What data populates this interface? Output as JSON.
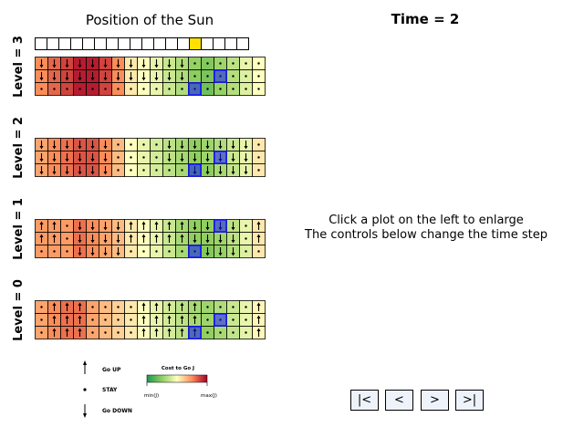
{
  "sun_panel": {
    "title": "Position of the Sun",
    "cells": 18,
    "active_index": 13,
    "active_color": "#ffe000"
  },
  "time_title": "Time = 2",
  "levels": [
    {
      "label": "Level = 3",
      "highlights": [
        {
          "row": 2,
          "col": 12
        },
        {
          "row": 1,
          "col": 14
        }
      ],
      "rows": [
        {
          "costs": [
            0.75,
            0.82,
            0.88,
            0.95,
            0.95,
            0.88,
            0.75,
            0.55,
            0.5,
            0.45,
            0.38,
            0.32,
            0.26,
            0.22,
            0.28,
            0.35,
            0.45,
            0.5
          ],
          "arrows": [
            "D",
            "D",
            "D",
            "D",
            "D",
            "D",
            "D",
            "D",
            "D",
            "D",
            "D",
            "D",
            "S",
            "S",
            "S",
            "S",
            "S",
            "S"
          ]
        },
        {
          "costs": [
            0.75,
            0.82,
            0.88,
            0.95,
            0.95,
            0.88,
            0.75,
            0.55,
            0.5,
            0.45,
            0.38,
            0.32,
            0.24,
            0.2,
            0.26,
            0.33,
            0.42,
            0.5
          ],
          "arrows": [
            "D",
            "D",
            "D",
            "D",
            "D",
            "D",
            "D",
            "D",
            "D",
            "D",
            "D",
            "D",
            "S",
            "S",
            "S",
            "S",
            "S",
            "S"
          ]
        },
        {
          "costs": [
            0.75,
            0.82,
            0.88,
            0.95,
            0.95,
            0.88,
            0.75,
            0.55,
            0.5,
            0.45,
            0.38,
            0.32,
            0.22,
            0.18,
            0.26,
            0.33,
            0.42,
            0.5
          ],
          "arrows": [
            "S",
            "S",
            "S",
            "S",
            "S",
            "S",
            "S",
            "S",
            "S",
            "S",
            "S",
            "S",
            "S",
            "S",
            "S",
            "S",
            "S",
            "S"
          ]
        }
      ]
    },
    {
      "label": "Level = 2",
      "highlights": [
        {
          "row": 1,
          "col": 14
        },
        {
          "row": 2,
          "col": 12
        }
      ],
      "rows": [
        {
          "costs": [
            0.7,
            0.75,
            0.8,
            0.85,
            0.85,
            0.75,
            0.65,
            0.5,
            0.45,
            0.4,
            0.35,
            0.3,
            0.25,
            0.28,
            0.32,
            0.38,
            0.45,
            0.55
          ],
          "arrows": [
            "D",
            "D",
            "D",
            "D",
            "D",
            "D",
            "S",
            "S",
            "S",
            "S",
            "D",
            "D",
            "D",
            "D",
            "D",
            "D",
            "D",
            "S"
          ]
        },
        {
          "costs": [
            0.7,
            0.75,
            0.8,
            0.85,
            0.85,
            0.75,
            0.65,
            0.5,
            0.45,
            0.4,
            0.35,
            0.3,
            0.25,
            0.28,
            0.32,
            0.38,
            0.45,
            0.55
          ],
          "arrows": [
            "D",
            "D",
            "D",
            "D",
            "D",
            "D",
            "S",
            "S",
            "S",
            "S",
            "D",
            "D",
            "D",
            "D",
            "D",
            "D",
            "D",
            "S"
          ]
        },
        {
          "costs": [
            0.7,
            0.75,
            0.8,
            0.85,
            0.85,
            0.75,
            0.65,
            0.5,
            0.45,
            0.4,
            0.35,
            0.3,
            0.2,
            0.24,
            0.3,
            0.36,
            0.44,
            0.55
          ],
          "arrows": [
            "D",
            "D",
            "D",
            "D",
            "D",
            "D",
            "S",
            "S",
            "S",
            "S",
            "S",
            "S",
            "D",
            "D",
            "D",
            "D",
            "D",
            "S"
          ]
        }
      ]
    },
    {
      "label": "Level = 1",
      "highlights": [
        {
          "row": 0,
          "col": 14
        },
        {
          "row": 2,
          "col": 12
        }
      ],
      "rows": [
        {
          "costs": [
            0.72,
            0.72,
            0.72,
            0.8,
            0.75,
            0.7,
            0.65,
            0.55,
            0.5,
            0.45,
            0.38,
            0.3,
            0.25,
            0.25,
            0.28,
            0.35,
            0.45,
            0.55
          ],
          "arrows": [
            "U",
            "U",
            "S",
            "D",
            "D",
            "D",
            "D",
            "U",
            "U",
            "U",
            "U",
            "U",
            "D",
            "D",
            "D",
            "D",
            "S",
            "U"
          ]
        },
        {
          "costs": [
            0.72,
            0.72,
            0.72,
            0.8,
            0.75,
            0.7,
            0.65,
            0.55,
            0.5,
            0.45,
            0.38,
            0.3,
            0.25,
            0.25,
            0.28,
            0.35,
            0.45,
            0.55
          ],
          "arrows": [
            "U",
            "U",
            "S",
            "D",
            "D",
            "D",
            "D",
            "U",
            "U",
            "U",
            "U",
            "U",
            "D",
            "D",
            "D",
            "D",
            "S",
            "U"
          ]
        },
        {
          "costs": [
            0.72,
            0.72,
            0.72,
            0.8,
            0.75,
            0.7,
            0.65,
            0.55,
            0.5,
            0.45,
            0.38,
            0.3,
            0.22,
            0.22,
            0.26,
            0.33,
            0.42,
            0.55
          ],
          "arrows": [
            "S",
            "S",
            "S",
            "D",
            "D",
            "D",
            "D",
            "S",
            "S",
            "S",
            "S",
            "S",
            "S",
            "D",
            "D",
            "D",
            "S",
            "S"
          ]
        }
      ]
    },
    {
      "label": "Level = 0",
      "highlights": [
        {
          "row": 1,
          "col": 14
        },
        {
          "row": 2,
          "col": 12
        }
      ],
      "rows": [
        {
          "costs": [
            0.7,
            0.75,
            0.8,
            0.8,
            0.7,
            0.65,
            0.6,
            0.55,
            0.5,
            0.45,
            0.4,
            0.35,
            0.3,
            0.28,
            0.32,
            0.38,
            0.45,
            0.52
          ],
          "arrows": [
            "S",
            "U",
            "U",
            "U",
            "S",
            "S",
            "S",
            "S",
            "U",
            "U",
            "U",
            "U",
            "U",
            "S",
            "S",
            "S",
            "S",
            "U"
          ]
        },
        {
          "costs": [
            0.7,
            0.75,
            0.8,
            0.8,
            0.7,
            0.65,
            0.6,
            0.55,
            0.5,
            0.45,
            0.4,
            0.35,
            0.3,
            0.28,
            0.32,
            0.38,
            0.45,
            0.52
          ],
          "arrows": [
            "S",
            "U",
            "U",
            "U",
            "S",
            "S",
            "S",
            "S",
            "U",
            "U",
            "U",
            "U",
            "U",
            "S",
            "S",
            "S",
            "S",
            "U"
          ]
        },
        {
          "costs": [
            0.7,
            0.75,
            0.8,
            0.8,
            0.7,
            0.65,
            0.6,
            0.55,
            0.5,
            0.45,
            0.4,
            0.35,
            0.25,
            0.25,
            0.3,
            0.36,
            0.44,
            0.52
          ],
          "arrows": [
            "S",
            "U",
            "U",
            "U",
            "S",
            "S",
            "S",
            "S",
            "U",
            "U",
            "U",
            "U",
            "U",
            "S",
            "S",
            "S",
            "S",
            "U"
          ]
        }
      ]
    }
  ],
  "legend": {
    "go_up": "Go UP",
    "stay": "STAY",
    "go_down": "Go DOWN",
    "cost_title": "Cost to Go J",
    "min_label": "min(J)",
    "max_label": "max(J)"
  },
  "info": {
    "line1": "Click a plot on the left to enlarge",
    "line2": "The controls below change the time step"
  },
  "controls": {
    "first": "|<",
    "prev": "<",
    "next": ">",
    "last": ">|",
    "background": "#eef3fb"
  },
  "colors": {
    "highlight": "#1a1aff"
  }
}
